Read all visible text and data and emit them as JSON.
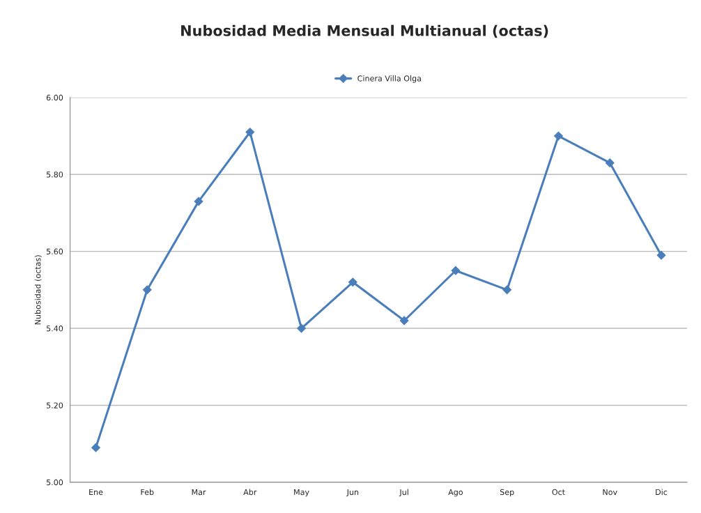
{
  "chart_data": {
    "type": "line",
    "title": "Nubosidad Media Mensual Multianual (octas)",
    "ylabel": "Nubosidad (octas)",
    "categories": [
      "Ene",
      "Feb",
      "Mar",
      "Abr",
      "May",
      "Jun",
      "Jul",
      "Ago",
      "Sep",
      "Oct",
      "Nov",
      "Dic"
    ],
    "series": [
      {
        "name": "Cinera Villa Olga",
        "color": "#4a7ebb",
        "values": [
          5.09,
          5.5,
          5.73,
          5.91,
          5.4,
          5.52,
          5.42,
          5.55,
          5.5,
          5.9,
          5.83,
          5.59
        ]
      }
    ],
    "ylim": [
      5.0,
      6.0
    ],
    "yticks": [
      {
        "value": 5.0,
        "label": "5.00"
      },
      {
        "value": 5.2,
        "label": "5.20"
      },
      {
        "value": 5.4,
        "label": "5.40"
      },
      {
        "value": 5.6,
        "label": "5.60"
      },
      {
        "value": 5.8,
        "label": "5.80"
      },
      {
        "value": 6.0,
        "label": "6.00"
      }
    ],
    "grid": "y",
    "legend": "top",
    "marker": "diamond",
    "line_style": "solid"
  }
}
